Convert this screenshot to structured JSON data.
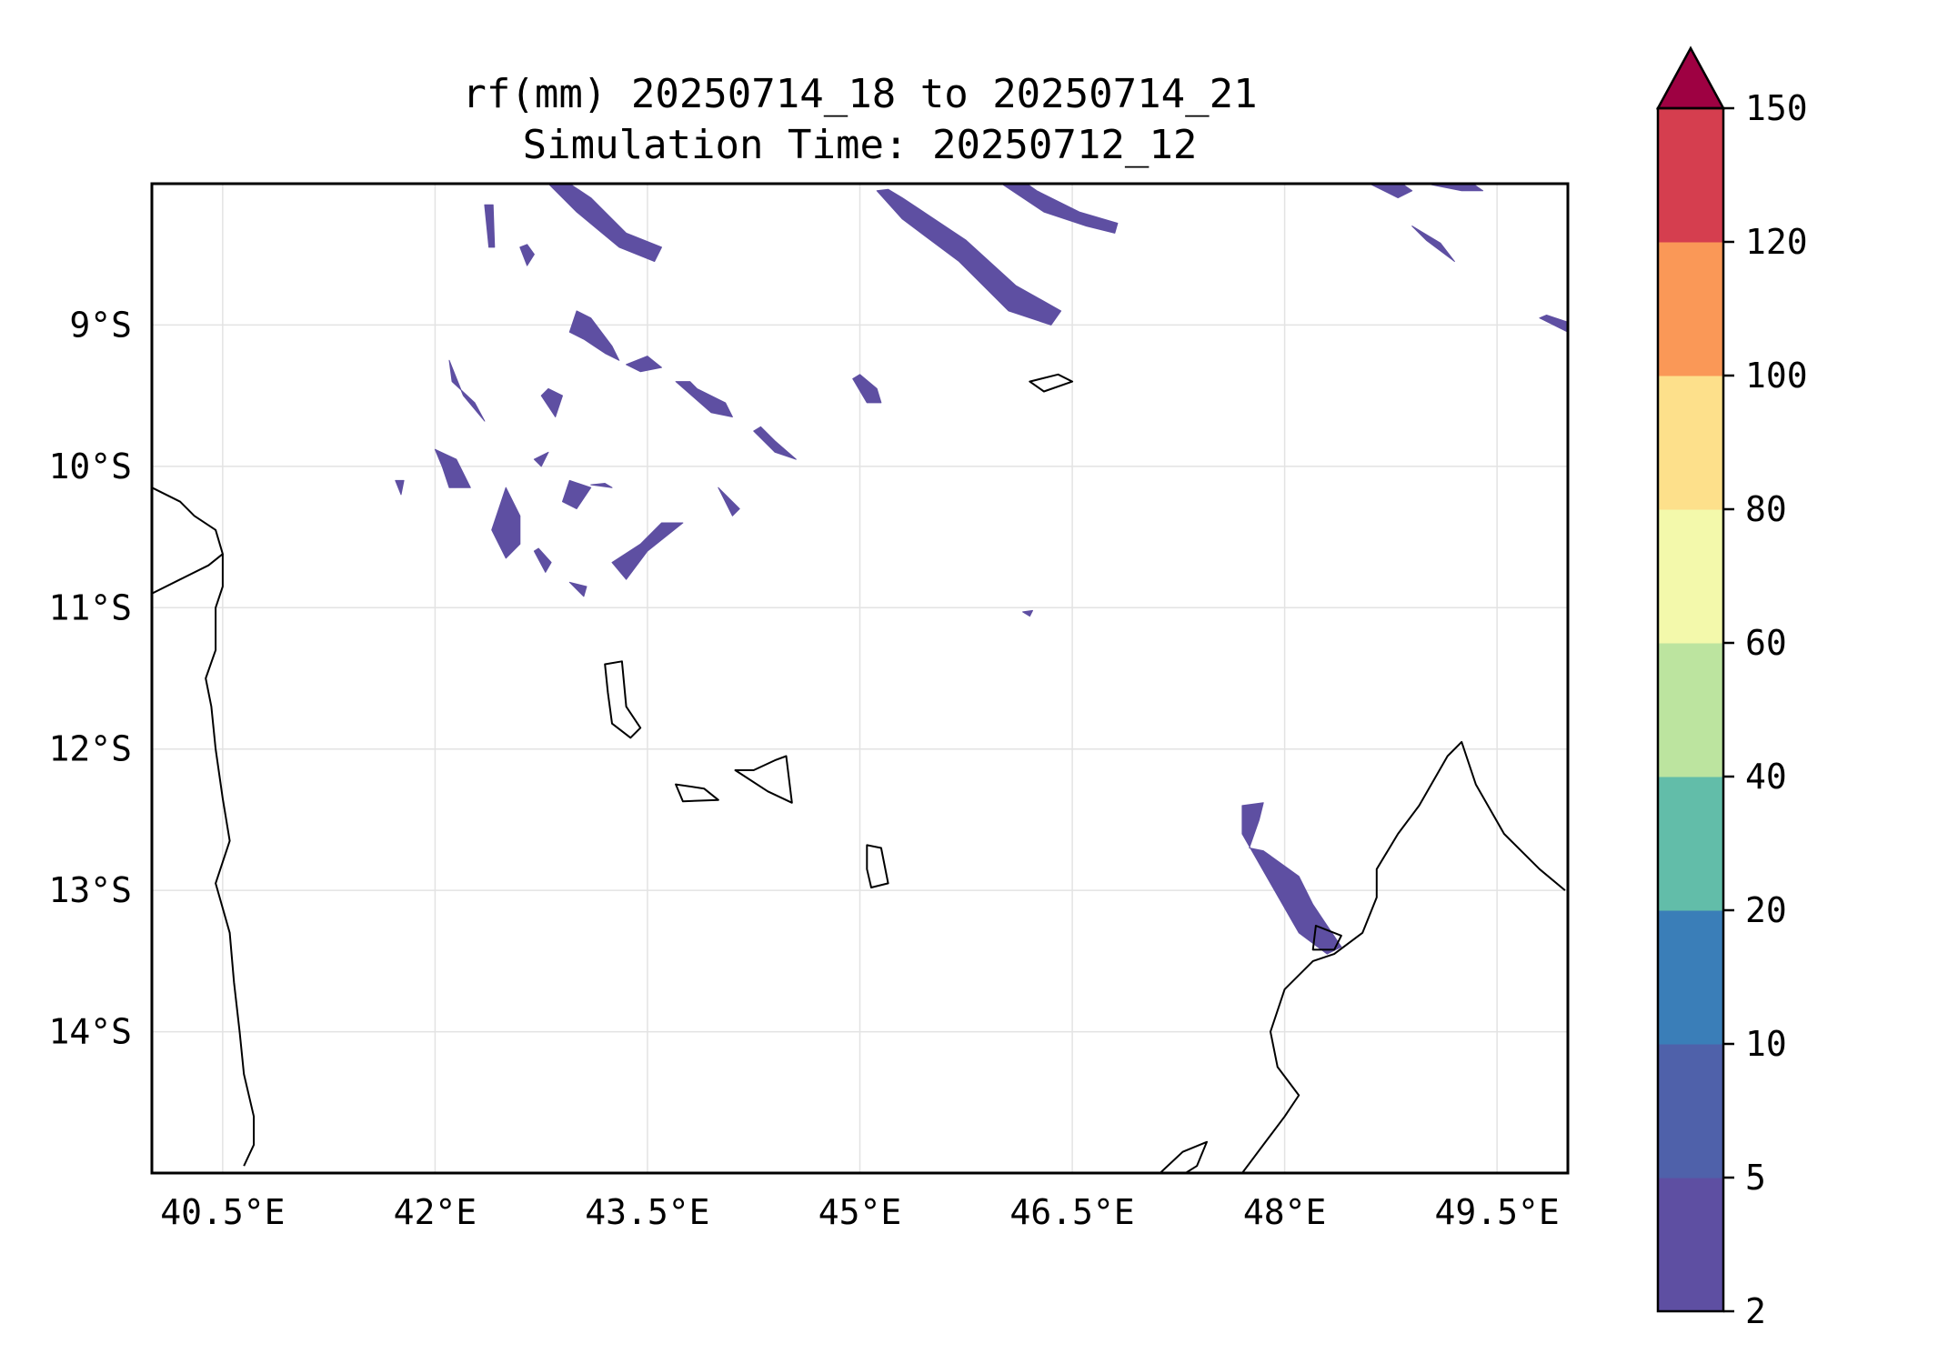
{
  "title_line1": "rf(mm) 20250714_18 to 20250714_21",
  "title_line2": "Simulation Time: 20250712_12",
  "map": {
    "lon_range": [
      40.0,
      50.0
    ],
    "lat_range": [
      -15.0,
      -8.0
    ],
    "grid": true,
    "x_ticks": [
      {
        "value": 40.5,
        "label": "40.5°E"
      },
      {
        "value": 42.0,
        "label": "42°E"
      },
      {
        "value": 43.5,
        "label": "43.5°E"
      },
      {
        "value": 45.0,
        "label": "45°E"
      },
      {
        "value": 46.5,
        "label": "46.5°E"
      },
      {
        "value": 48.0,
        "label": "48°E"
      },
      {
        "value": 49.5,
        "label": "49.5°E"
      }
    ],
    "y_ticks": [
      {
        "value": -9,
        "label": "9°S"
      },
      {
        "value": -10,
        "label": "10°S"
      },
      {
        "value": -11,
        "label": "11°S"
      },
      {
        "value": -12,
        "label": "12°S"
      },
      {
        "value": -13,
        "label": "13°S"
      },
      {
        "value": -14,
        "label": "14°S"
      }
    ],
    "rain_color": "#5e4fa2",
    "rain_areas": [
      [
        [
          42.8,
          -8.0
        ],
        [
          43.0,
          -8.2
        ],
        [
          43.3,
          -8.45
        ],
        [
          43.55,
          -8.55
        ],
        [
          43.6,
          -8.45
        ],
        [
          43.35,
          -8.35
        ],
        [
          43.1,
          -8.1
        ],
        [
          42.95,
          -8.0
        ]
      ],
      [
        [
          45.12,
          -8.05
        ],
        [
          45.3,
          -8.25
        ],
        [
          45.7,
          -8.55
        ],
        [
          46.05,
          -8.9
        ],
        [
          46.35,
          -9.0
        ],
        [
          46.42,
          -8.9
        ],
        [
          46.1,
          -8.72
        ],
        [
          45.75,
          -8.4
        ],
        [
          45.3,
          -8.1
        ],
        [
          45.2,
          -8.04
        ]
      ],
      [
        [
          46.0,
          -8.0
        ],
        [
          46.3,
          -8.2
        ],
        [
          46.6,
          -8.3
        ],
        [
          46.8,
          -8.35
        ],
        [
          46.82,
          -8.28
        ],
        [
          46.55,
          -8.2
        ],
        [
          46.25,
          -8.05
        ],
        [
          46.15,
          -7.98
        ]
      ],
      [
        [
          42.35,
          -8.15
        ],
        [
          42.38,
          -8.45
        ],
        [
          42.42,
          -8.45
        ],
        [
          42.41,
          -8.15
        ]
      ],
      [
        [
          42.6,
          -8.45
        ],
        [
          42.65,
          -8.58
        ],
        [
          42.7,
          -8.5
        ],
        [
          42.65,
          -8.43
        ]
      ],
      [
        [
          43.0,
          -8.9
        ],
        [
          43.1,
          -8.95
        ],
        [
          43.25,
          -9.15
        ],
        [
          43.3,
          -9.25
        ],
        [
          43.2,
          -9.2
        ],
        [
          43.05,
          -9.1
        ],
        [
          42.95,
          -9.05
        ]
      ],
      [
        [
          43.35,
          -9.28
        ],
        [
          43.45,
          -9.33
        ],
        [
          43.6,
          -9.3
        ],
        [
          43.5,
          -9.22
        ]
      ],
      [
        [
          42.1,
          -9.25
        ],
        [
          42.2,
          -9.5
        ],
        [
          42.35,
          -9.68
        ],
        [
          42.28,
          -9.55
        ],
        [
          42.12,
          -9.4
        ]
      ],
      [
        [
          42.75,
          -9.5
        ],
        [
          42.85,
          -9.65
        ],
        [
          42.9,
          -9.5
        ],
        [
          42.8,
          -9.45
        ]
      ],
      [
        [
          43.7,
          -9.4
        ],
        [
          43.95,
          -9.62
        ],
        [
          44.1,
          -9.65
        ],
        [
          44.05,
          -9.55
        ],
        [
          43.85,
          -9.45
        ],
        [
          43.8,
          -9.4
        ]
      ],
      [
        [
          44.25,
          -9.75
        ],
        [
          44.4,
          -9.9
        ],
        [
          44.55,
          -9.95
        ],
        [
          44.4,
          -9.82
        ],
        [
          44.3,
          -9.72
        ]
      ],
      [
        [
          42.0,
          -9.88
        ],
        [
          42.15,
          -9.95
        ],
        [
          42.25,
          -10.15
        ],
        [
          42.1,
          -10.15
        ],
        [
          42.05,
          -10.0
        ]
      ],
      [
        [
          42.7,
          -9.95
        ],
        [
          42.75,
          -10.0
        ],
        [
          42.8,
          -9.9
        ]
      ],
      [
        [
          42.4,
          -10.45
        ],
        [
          42.5,
          -10.65
        ],
        [
          42.6,
          -10.55
        ],
        [
          42.6,
          -10.35
        ],
        [
          42.5,
          -10.15
        ]
      ],
      [
        [
          42.9,
          -10.25
        ],
        [
          43.0,
          -10.3
        ],
        [
          43.1,
          -10.15
        ],
        [
          42.95,
          -10.1
        ]
      ],
      [
        [
          43.1,
          -10.13
        ],
        [
          43.25,
          -10.15
        ],
        [
          43.2,
          -10.12
        ]
      ],
      [
        [
          43.25,
          -10.68
        ],
        [
          43.35,
          -10.8
        ],
        [
          43.5,
          -10.6
        ],
        [
          43.75,
          -10.4
        ],
        [
          43.6,
          -10.4
        ],
        [
          43.45,
          -10.55
        ]
      ],
      [
        [
          42.7,
          -10.6
        ],
        [
          42.78,
          -10.75
        ],
        [
          42.82,
          -10.68
        ],
        [
          42.73,
          -10.58
        ]
      ],
      [
        [
          42.95,
          -10.82
        ],
        [
          43.05,
          -10.92
        ],
        [
          43.07,
          -10.85
        ]
      ],
      [
        [
          41.72,
          -10.1
        ],
        [
          41.76,
          -10.2
        ],
        [
          41.78,
          -10.1
        ]
      ],
      [
        [
          44.95,
          -9.38
        ],
        [
          45.05,
          -9.55
        ],
        [
          45.15,
          -9.55
        ],
        [
          45.12,
          -9.45
        ],
        [
          45.0,
          -9.35
        ]
      ],
      [
        [
          47.75,
          -12.7
        ],
        [
          47.85,
          -12.72
        ],
        [
          48.1,
          -12.9
        ],
        [
          48.2,
          -13.1
        ],
        [
          48.4,
          -13.4
        ],
        [
          48.3,
          -13.45
        ],
        [
          48.1,
          -13.3
        ],
        [
          47.9,
          -12.95
        ],
        [
          47.7,
          -12.6
        ],
        [
          47.7,
          -12.4
        ],
        [
          47.85,
          -12.38
        ],
        [
          47.82,
          -12.5
        ]
      ],
      [
        [
          49.0,
          -8.0
        ],
        [
          49.25,
          -8.05
        ],
        [
          49.4,
          -8.05
        ],
        [
          49.3,
          -7.98
        ]
      ],
      [
        [
          48.6,
          -8.0
        ],
        [
          48.8,
          -8.1
        ],
        [
          48.9,
          -8.05
        ],
        [
          48.8,
          -7.98
        ]
      ],
      [
        [
          48.9,
          -8.3
        ],
        [
          49.1,
          -8.42
        ],
        [
          49.2,
          -8.55
        ],
        [
          49.0,
          -8.4
        ]
      ],
      [
        [
          49.8,
          -8.95
        ],
        [
          50.0,
          -9.05
        ],
        [
          50.0,
          -8.98
        ],
        [
          49.85,
          -8.93
        ]
      ],
      [
        [
          46.15,
          -11.03
        ],
        [
          46.2,
          -11.06
        ],
        [
          46.22,
          -11.02
        ]
      ],
      [
        [
          44.0,
          -10.15
        ],
        [
          44.1,
          -10.35
        ],
        [
          44.15,
          -10.3
        ]
      ]
    ],
    "coast_lines": [
      [
        [
          40.0,
          -10.15
        ],
        [
          40.2,
          -10.25
        ],
        [
          40.3,
          -10.35
        ],
        [
          40.45,
          -10.45
        ],
        [
          40.5,
          -10.62
        ],
        [
          40.4,
          -10.7
        ],
        [
          40.2,
          -10.8
        ],
        [
          40.0,
          -10.9
        ]
      ],
      [
        [
          40.5,
          -10.62
        ],
        [
          40.5,
          -10.85
        ],
        [
          40.45,
          -11.0
        ],
        [
          40.45,
          -11.3
        ],
        [
          40.38,
          -11.5
        ],
        [
          40.42,
          -11.7
        ],
        [
          40.45,
          -12.0
        ],
        [
          40.5,
          -12.35
        ],
        [
          40.55,
          -12.65
        ],
        [
          40.45,
          -12.95
        ],
        [
          40.55,
          -13.3
        ],
        [
          40.58,
          -13.65
        ],
        [
          40.62,
          -14.0
        ],
        [
          40.65,
          -14.3
        ],
        [
          40.72,
          -14.6
        ],
        [
          40.72,
          -14.8
        ],
        [
          40.65,
          -14.95
        ]
      ],
      [
        [
          47.7,
          -15.0
        ],
        [
          47.85,
          -14.8
        ],
        [
          48.0,
          -14.6
        ],
        [
          48.1,
          -14.45
        ],
        [
          47.95,
          -14.25
        ],
        [
          47.9,
          -14.0
        ],
        [
          48.0,
          -13.7
        ],
        [
          48.2,
          -13.5
        ],
        [
          48.35,
          -13.45
        ],
        [
          48.55,
          -13.3
        ],
        [
          48.65,
          -13.05
        ],
        [
          48.65,
          -12.85
        ],
        [
          48.8,
          -12.6
        ],
        [
          48.95,
          -12.4
        ],
        [
          49.15,
          -12.05
        ],
        [
          49.25,
          -11.95
        ],
        [
          49.35,
          -12.25
        ],
        [
          49.55,
          -12.6
        ],
        [
          49.8,
          -12.85
        ],
        [
          49.98,
          -13.0
        ]
      ],
      [
        [
          47.12,
          -15.0
        ],
        [
          47.28,
          -14.85
        ],
        [
          47.45,
          -14.78
        ],
        [
          47.38,
          -14.95
        ],
        [
          47.3,
          -15.0
        ]
      ]
    ],
    "islands": [
      [
        [
          43.2,
          -11.4
        ],
        [
          43.32,
          -11.38
        ],
        [
          43.35,
          -11.7
        ],
        [
          43.45,
          -11.85
        ],
        [
          43.38,
          -11.92
        ],
        [
          43.25,
          -11.82
        ],
        [
          43.22,
          -11.6
        ]
      ],
      [
        [
          44.4,
          -12.08
        ],
        [
          44.48,
          -12.05
        ],
        [
          44.52,
          -12.38
        ],
        [
          44.35,
          -12.3
        ],
        [
          44.12,
          -12.15
        ],
        [
          44.25,
          -12.15
        ]
      ],
      [
        [
          43.7,
          -12.25
        ],
        [
          43.9,
          -12.28
        ],
        [
          44.0,
          -12.36
        ],
        [
          43.75,
          -12.37
        ]
      ],
      [
        [
          45.05,
          -12.68
        ],
        [
          45.15,
          -12.7
        ],
        [
          45.2,
          -12.95
        ],
        [
          45.08,
          -12.98
        ],
        [
          45.05,
          -12.85
        ]
      ],
      [
        [
          46.2,
          -9.4
        ],
        [
          46.4,
          -9.35
        ],
        [
          46.5,
          -9.4
        ],
        [
          46.3,
          -9.47
        ]
      ],
      [
        [
          48.22,
          -13.25
        ],
        [
          48.4,
          -13.32
        ],
        [
          48.35,
          -13.42
        ],
        [
          48.2,
          -13.42
        ]
      ]
    ]
  },
  "colorbar": {
    "levels": [
      "2",
      "5",
      "10",
      "20",
      "40",
      "60",
      "80",
      "100",
      "120",
      "150"
    ],
    "colors": [
      "#5e4fa2",
      "#4f61aa",
      "#3a7eb8",
      "#62bda9",
      "#bce49f",
      "#f3f9ab",
      "#fde08b",
      "#fa9857",
      "#d53e4f"
    ],
    "extend_color": "#9e0142"
  }
}
